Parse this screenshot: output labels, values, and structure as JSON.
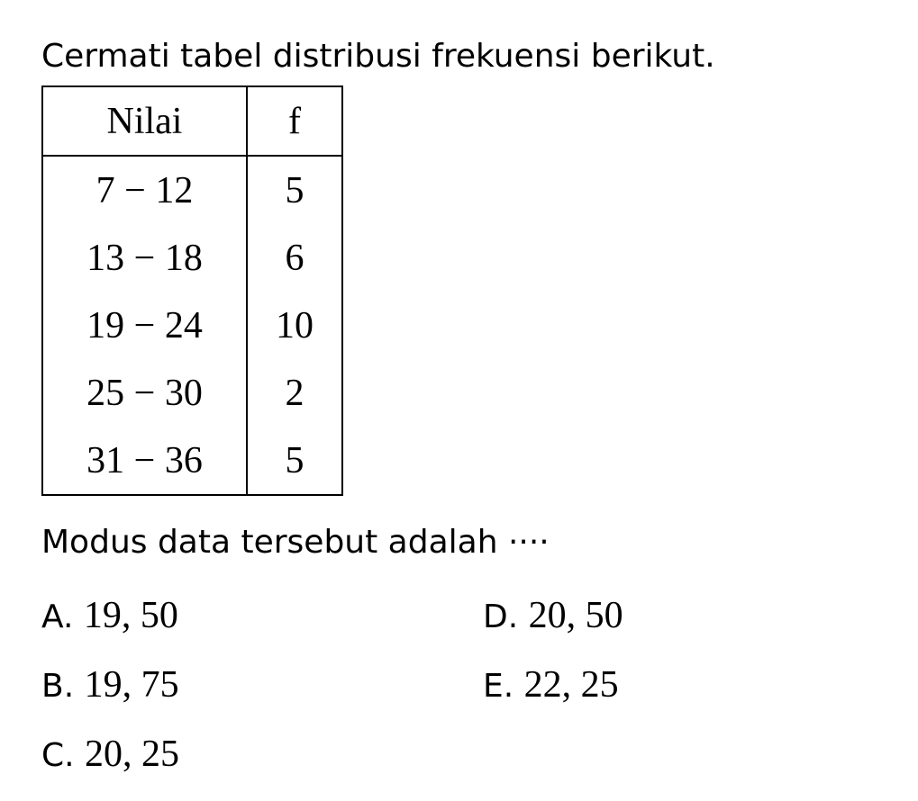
{
  "question": "Cermati tabel distribusi frekuensi berikut.",
  "table": {
    "headers": [
      "Nilai",
      "f"
    ],
    "rows": [
      [
        "7 − 12",
        "5"
      ],
      [
        "13 − 18",
        "6"
      ],
      [
        "19 − 24",
        "10"
      ],
      [
        "25 − 30",
        "2"
      ],
      [
        "31 − 36",
        "5"
      ]
    ]
  },
  "stem": "Modus data tersebut adalah ····",
  "options": [
    {
      "letter": "A.",
      "value": "19, 50"
    },
    {
      "letter": "B.",
      "value": "19, 75"
    },
    {
      "letter": "C.",
      "value": "20, 25"
    },
    {
      "letter": "D.",
      "value": "20, 50"
    },
    {
      "letter": "E.",
      "value": "22, 25"
    }
  ]
}
